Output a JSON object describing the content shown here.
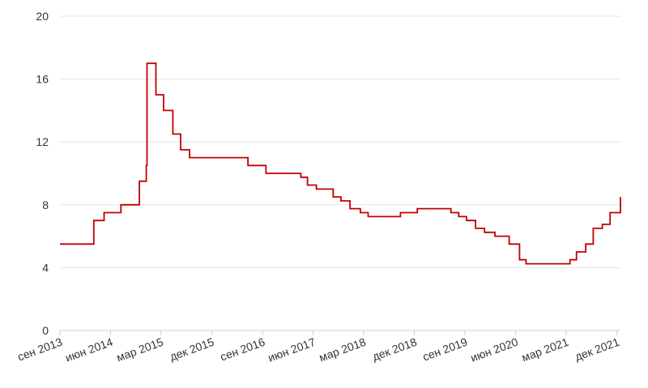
{
  "chart_data": {
    "type": "line",
    "step": true,
    "line_color": "#c00000",
    "grid": true,
    "ylim": [
      0,
      20
    ],
    "yticks": [
      0,
      4,
      8,
      12,
      16,
      20
    ],
    "xlim": [
      "2013-09-01",
      "2021-12-20"
    ],
    "xticks": [
      {
        "label": "сен 2013",
        "date": "2013-09-01"
      },
      {
        "label": "июн 2014",
        "date": "2014-06-01"
      },
      {
        "label": "мар 2015",
        "date": "2015-03-01"
      },
      {
        "label": "дек 2015",
        "date": "2015-12-01"
      },
      {
        "label": "сен 2016",
        "date": "2016-09-01"
      },
      {
        "label": "июн 2017",
        "date": "2017-06-01"
      },
      {
        "label": "мар 2018",
        "date": "2018-03-01"
      },
      {
        "label": "дек 2018",
        "date": "2018-12-01"
      },
      {
        "label": "сен 2019",
        "date": "2019-09-01"
      },
      {
        "label": "июн 2020",
        "date": "2020-06-01"
      },
      {
        "label": "мар 2021",
        "date": "2021-03-01"
      },
      {
        "label": "дек 2021",
        "date": "2021-12-01"
      }
    ],
    "series": [
      {
        "points": [
          {
            "x": "2013-09-01",
            "y": 5.5
          },
          {
            "x": "2014-03-03",
            "y": 7.0
          },
          {
            "x": "2014-04-28",
            "y": 7.5
          },
          {
            "x": "2014-07-28",
            "y": 8.0
          },
          {
            "x": "2014-11-05",
            "y": 9.5
          },
          {
            "x": "2014-12-12",
            "y": 10.5
          },
          {
            "x": "2014-12-16",
            "y": 17.0
          },
          {
            "x": "2015-02-02",
            "y": 15.0
          },
          {
            "x": "2015-03-16",
            "y": 14.0
          },
          {
            "x": "2015-05-05",
            "y": 12.5
          },
          {
            "x": "2015-06-16",
            "y": 11.5
          },
          {
            "x": "2015-08-03",
            "y": 11.0
          },
          {
            "x": "2016-06-14",
            "y": 10.5
          },
          {
            "x": "2016-09-19",
            "y": 10.0
          },
          {
            "x": "2017-03-27",
            "y": 9.75
          },
          {
            "x": "2017-05-02",
            "y": 9.25
          },
          {
            "x": "2017-06-19",
            "y": 9.0
          },
          {
            "x": "2017-09-18",
            "y": 8.5
          },
          {
            "x": "2017-10-30",
            "y": 8.25
          },
          {
            "x": "2017-12-18",
            "y": 7.75
          },
          {
            "x": "2018-02-12",
            "y": 7.5
          },
          {
            "x": "2018-03-26",
            "y": 7.25
          },
          {
            "x": "2018-09-17",
            "y": 7.5
          },
          {
            "x": "2018-12-17",
            "y": 7.75
          },
          {
            "x": "2019-06-17",
            "y": 7.5
          },
          {
            "x": "2019-07-29",
            "y": 7.25
          },
          {
            "x": "2019-09-09",
            "y": 7.0
          },
          {
            "x": "2019-10-28",
            "y": 6.5
          },
          {
            "x": "2019-12-16",
            "y": 6.25
          },
          {
            "x": "2020-02-10",
            "y": 6.0
          },
          {
            "x": "2020-04-27",
            "y": 5.5
          },
          {
            "x": "2020-06-22",
            "y": 4.5
          },
          {
            "x": "2020-07-27",
            "y": 4.25
          },
          {
            "x": "2021-03-22",
            "y": 4.5
          },
          {
            "x": "2021-04-26",
            "y": 5.0
          },
          {
            "x": "2021-06-15",
            "y": 5.5
          },
          {
            "x": "2021-07-26",
            "y": 6.5
          },
          {
            "x": "2021-09-13",
            "y": 6.75
          },
          {
            "x": "2021-10-25",
            "y": 7.5
          },
          {
            "x": "2021-12-20",
            "y": 8.5
          }
        ]
      }
    ]
  }
}
